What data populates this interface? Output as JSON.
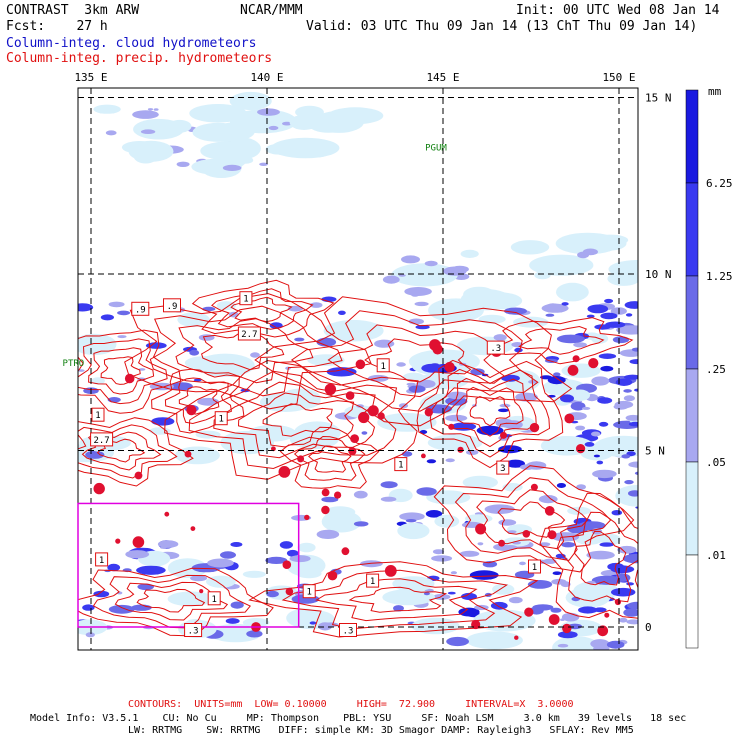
{
  "header": {
    "title_left": "CONTRAST  3km ARW",
    "center": "NCAR/MMM",
    "init": "Init: 00 UTC Wed 08 Jan 14",
    "fcst": "Fcst:    27 h",
    "valid": "Valid: 03 UTC Thu 09 Jan 14 (13 ChT Thu 09 Jan 14)",
    "field_cloud": "Column-integ. cloud hydrometeors",
    "field_precip": "Column-integ. precip. hydrometeors"
  },
  "map": {
    "lon_labels": [
      "135 E",
      "140 E",
      "145 E",
      "150 E"
    ],
    "lat_labels": [
      "15 N",
      "10 N",
      "5 N",
      "0"
    ],
    "places": [
      {
        "name": "PGUM",
        "lon": 144.8,
        "lat": 13.5
      },
      {
        "name": "PTRO",
        "lon": 134.5,
        "lat": 7.4
      }
    ],
    "contour_labels": [
      {
        "text": ".9",
        "lon": 136.4,
        "lat": 9.0
      },
      {
        "text": ".9",
        "lon": 137.3,
        "lat": 9.1
      },
      {
        "text": "1",
        "lon": 139.4,
        "lat": 9.3
      },
      {
        "text": "2.7",
        "lon": 139.5,
        "lat": 8.3
      },
      {
        "text": "1",
        "lon": 143.3,
        "lat": 7.4
      },
      {
        "text": ".3",
        "lon": 146.5,
        "lat": 7.9
      },
      {
        "text": "1",
        "lon": 135.2,
        "lat": 6.0
      },
      {
        "text": "2.7",
        "lon": 135.3,
        "lat": 5.3
      },
      {
        "text": "1",
        "lon": 138.7,
        "lat": 5.9
      },
      {
        "text": "1",
        "lon": 143.8,
        "lat": 4.6
      },
      {
        "text": "3",
        "lon": 146.7,
        "lat": 4.5
      },
      {
        "text": "1",
        "lon": 147.6,
        "lat": 1.7
      },
      {
        "text": "1",
        "lon": 135.3,
        "lat": 1.9
      },
      {
        "text": "1",
        "lon": 141.2,
        "lat": 1.0
      },
      {
        "text": "1",
        "lon": 143.0,
        "lat": 1.3
      },
      {
        "text": "1",
        "lon": 138.5,
        "lat": 0.8
      },
      {
        "text": ".3",
        "lon": 137.9,
        "lat": -0.1
      },
      {
        "text": ".3",
        "lon": 142.3,
        "lat": -0.1
      }
    ],
    "inset_box": {
      "lon_min": 135.0,
      "lon_max": 140.9,
      "lat_min": 0.0,
      "lat_max": 3.5
    }
  },
  "legend": {
    "unit": "mm",
    "levels": [
      "6.25",
      "1.25",
      ".25",
      ".05",
      ".01"
    ],
    "colors": [
      "#1a1ae0",
      "#3a3af0",
      "#6a6ae8",
      "#a8a8f0",
      "#d8f0fb",
      "#ffffff"
    ]
  },
  "footer": {
    "contours": "CONTOURS:  UNITS=mm  LOW= 0.10000     HIGH=  72.900     INTERVAL=X  3.0000",
    "line1": "Model Info: V3.5.1    CU: No Cu     MP: Thompson    PBL: YSU     SF: Noah LSM     3.0 km   39 levels   18 sec",
    "line2": "LW: RRTMG    SW: RRTMG   DIFF: simple KM: 3D Smagor DAMP: Rayleigh3   SFLAY: Rev MM5"
  }
}
